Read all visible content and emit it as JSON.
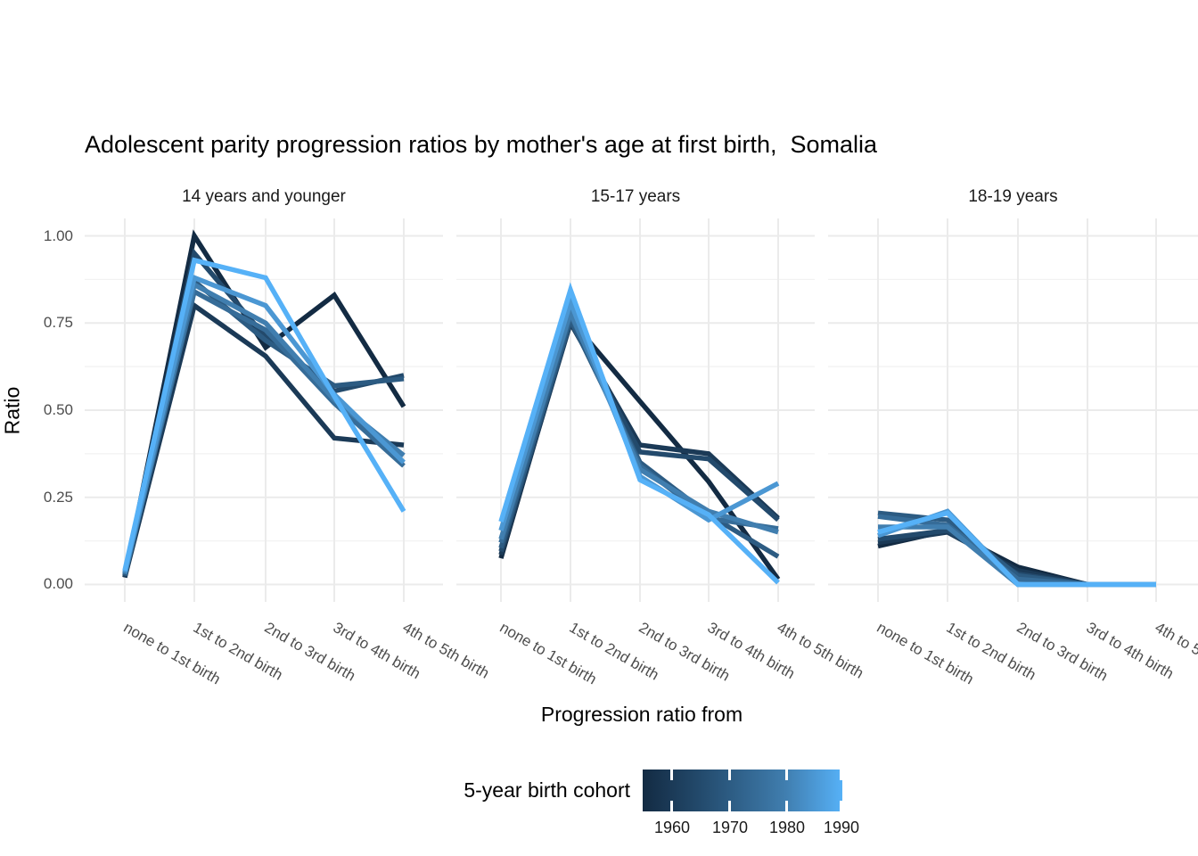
{
  "title": "Adolescent parity progression ratios by mother's age at first birth,  Somalia",
  "y_axis": {
    "title": "Ratio",
    "tick_labels": [
      "1.00",
      "0.75",
      "0.50",
      "0.25",
      "0.00"
    ]
  },
  "x_axis": {
    "title": "Progression ratio from"
  },
  "legend": {
    "title": "5-year birth cohort",
    "tick_labels": [
      "1960",
      "1970",
      "1980",
      "1990"
    ],
    "gradient_low": "#132B43",
    "gradient_high": "#56B1F7"
  },
  "chart_data": {
    "type": "line",
    "title": "Adolescent parity progression ratios by mother's age at first birth,  Somalia",
    "xlabel": "Progression ratio from",
    "ylabel": "Ratio",
    "ylim": [
      0,
      1
    ],
    "yticks": [
      0,
      0.25,
      0.5,
      0.75,
      1.0
    ],
    "yminor": [
      0.125,
      0.375,
      0.625,
      0.875
    ],
    "grid": "on",
    "legend_position": "bottom",
    "color_scale": {
      "label": "5-year birth cohort",
      "range": [
        1955,
        1990
      ],
      "ticks": [
        1960,
        1970,
        1980,
        1990
      ]
    },
    "categories": [
      "none to 1st birth",
      "1st to 2nd birth",
      "2nd to 3rd birth",
      "3rd to 4th birth",
      "4th to 5th birth"
    ],
    "facets": [
      {
        "label": "14 years and younger",
        "series": [
          {
            "name": "1955",
            "color": "#132B43",
            "values": [
              0.02,
              1.0,
              0.68,
              0.83,
              0.51
            ]
          },
          {
            "name": "1960",
            "color": "#1B3A57",
            "values": [
              0.02,
              0.8,
              0.655,
              0.42,
              0.4
            ]
          },
          {
            "name": "1965",
            "color": "#234A6C",
            "values": [
              0.025,
              0.95,
              0.71,
              0.555,
              0.6
            ]
          },
          {
            "name": "1970",
            "color": "#2C5B82",
            "values": [
              0.025,
              0.87,
              0.7,
              0.57,
              0.59
            ]
          },
          {
            "name": "1975",
            "color": "#366C98",
            "values": [
              0.03,
              0.84,
              0.73,
              0.52,
              0.34
            ]
          },
          {
            "name": "1980",
            "color": "#407EAF",
            "values": [
              0.03,
              0.86,
              0.75,
              0.53,
              0.37
            ]
          },
          {
            "name": "1985",
            "color": "#4B97D3",
            "values": [
              0.035,
              0.88,
              0.8,
              0.545,
              0.35
            ]
          },
          {
            "name": "1990",
            "color": "#56B1F7",
            "values": [
              0.04,
              0.93,
              0.88,
              0.54,
              0.21
            ]
          }
        ]
      },
      {
        "label": "15-17 years",
        "series": [
          {
            "name": "1955",
            "color": "#132B43",
            "values": [
              0.075,
              0.76,
              0.525,
              0.295,
              0.015
            ]
          },
          {
            "name": "1960",
            "color": "#1B3A57",
            "values": [
              0.085,
              0.75,
              0.4,
              0.375,
              0.19
            ]
          },
          {
            "name": "1965",
            "color": "#234A6C",
            "values": [
              0.095,
              0.755,
              0.38,
              0.36,
              0.185
            ]
          },
          {
            "name": "1970",
            "color": "#2C5B82",
            "values": [
              0.105,
              0.76,
              0.35,
              0.2,
              0.08
            ]
          },
          {
            "name": "1975",
            "color": "#366C98",
            "values": [
              0.12,
              0.775,
              0.34,
              0.19,
              0.16
            ]
          },
          {
            "name": "1980",
            "color": "#407EAF",
            "values": [
              0.13,
              0.78,
              0.33,
              0.21,
              0.15
            ]
          },
          {
            "name": "1985",
            "color": "#4B97D3",
            "values": [
              0.155,
              0.81,
              0.31,
              0.185,
              0.29
            ]
          },
          {
            "name": "1990",
            "color": "#56B1F7",
            "values": [
              0.18,
              0.845,
              0.3,
              0.2,
              0.005
            ]
          }
        ]
      },
      {
        "label": "18-19 years",
        "series": [
          {
            "name": "1955",
            "color": "#132B43",
            "values": [
              0.11,
              0.155,
              0.05,
              0.0,
              null
            ]
          },
          {
            "name": "1960",
            "color": "#1B3A57",
            "values": [
              0.12,
              0.15,
              0.04,
              0.0,
              null
            ]
          },
          {
            "name": "1965",
            "color": "#234A6C",
            "values": [
              0.13,
              0.155,
              0.03,
              0.0,
              null
            ]
          },
          {
            "name": "1970",
            "color": "#2C5B82",
            "values": [
              0.205,
              0.185,
              0.025,
              0.0,
              null
            ]
          },
          {
            "name": "1975",
            "color": "#366C98",
            "values": [
              0.195,
              0.17,
              0.015,
              0.0,
              null
            ]
          },
          {
            "name": "1980",
            "color": "#407EAF",
            "values": [
              0.165,
              0.165,
              0.0,
              0.0,
              0.0
            ]
          },
          {
            "name": "1985",
            "color": "#4B97D3",
            "values": [
              0.14,
              0.21,
              0.0,
              0.0,
              0.0
            ]
          },
          {
            "name": "1990",
            "color": "#56B1F7",
            "values": [
              0.15,
              0.205,
              0.0,
              0.0,
              0.0
            ]
          }
        ]
      }
    ]
  }
}
